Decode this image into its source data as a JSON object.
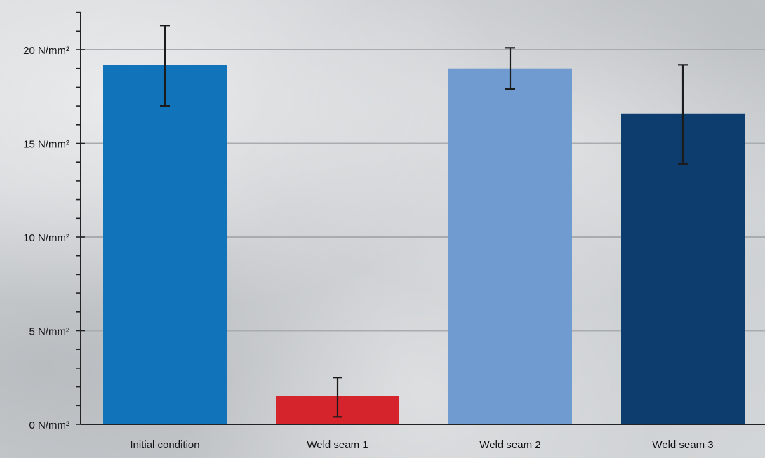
{
  "chart_data": {
    "type": "bar",
    "categories": [
      "Initial condition",
      "Weld seam 1",
      "Weld seam 2",
      "Weld seam 3"
    ],
    "values": [
      19.2,
      1.5,
      19.0,
      16.6
    ],
    "error_low": [
      17.0,
      0.4,
      17.9,
      13.9
    ],
    "error_high": [
      21.3,
      2.5,
      20.1,
      19.2
    ],
    "colors": [
      "#1173b9",
      "#d5242b",
      "#6f9bd1",
      "#0d3d6e"
    ],
    "y_ticks": [
      {
        "value": 0,
        "label": "0 N/mm²"
      },
      {
        "value": 5,
        "label": "5 N/mm²"
      },
      {
        "value": 10,
        "label": "10 N/mm²"
      },
      {
        "value": 15,
        "label": "15 N/mm²"
      },
      {
        "value": 20,
        "label": "20 N/mm²"
      }
    ],
    "ylim": [
      0,
      22
    ],
    "grid": true,
    "title": "",
    "xlabel": "",
    "ylabel": ""
  }
}
